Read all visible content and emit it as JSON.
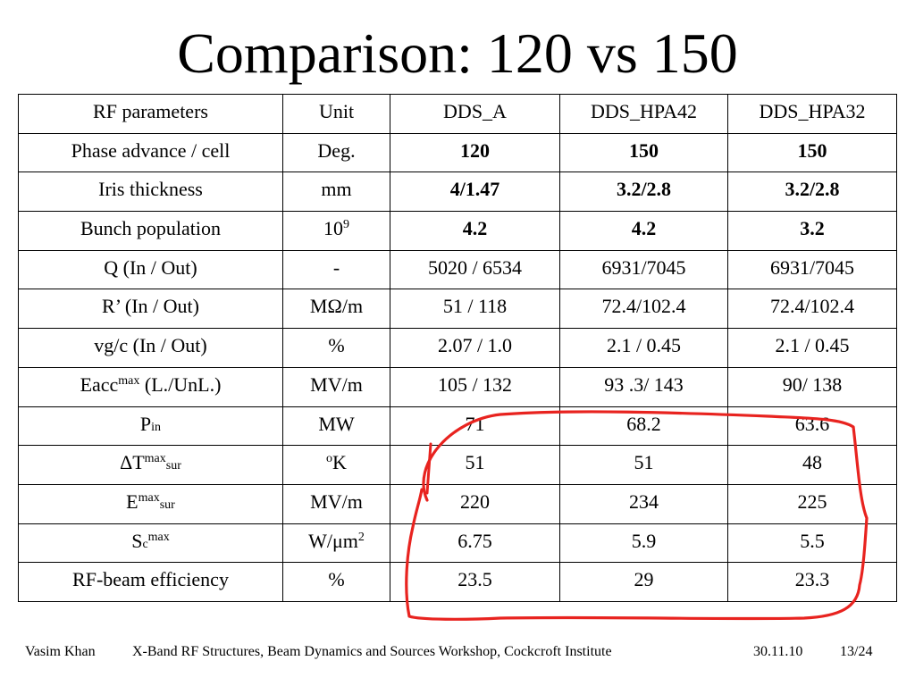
{
  "title": "Comparison: 120 vs 150",
  "table": {
    "header": [
      "RF parameters",
      "Unit",
      "DDS_A",
      "DDS_HPA42",
      "DDS_HPA32"
    ],
    "rows": [
      {
        "label": "Phase advance / cell",
        "unit": "Deg.",
        "a": "120",
        "b": "150",
        "c": "150",
        "bold": true
      },
      {
        "label": "Iris thickness",
        "unit": "mm",
        "a": "4/1.47",
        "b": "3.2/2.8",
        "c": "3.2/2.8",
        "bold": true
      },
      {
        "label": "Bunch population",
        "unit_base": "10",
        "unit_sup": "9",
        "a": "4.2",
        "b": "4.2",
        "c": "3.2",
        "bold": true
      },
      {
        "label": "Q (In / Out)",
        "unit": "-",
        "a": "5020 / 6534",
        "b": "6931/7045",
        "c": "6931/7045"
      },
      {
        "label": "R’ (In / Out)",
        "unit": "MΩ/m",
        "a": "51 / 118",
        "b": "72.4/102.4",
        "c": "72.4/102.4"
      },
      {
        "label": "vg/c (In / Out)",
        "unit": "%",
        "a": "2.07 / 1.0",
        "b": "2.1 / 0.45",
        "c": "2.1 / 0.45"
      },
      {
        "label_base": "Eacc",
        "label_sup": "max",
        "label_tail": " (L./UnL.)",
        "unit": "MV/m",
        "a": "105 / 132",
        "b": "93 .3/ 143",
        "c": "90/ 138"
      },
      {
        "label_base": "P",
        "label_sub": "in",
        "unit": "MW",
        "a": "71",
        "b": "68.2",
        "c": "63.6"
      },
      {
        "label_base": "ΔT",
        "label_sup": "max",
        "label_sub": "sur",
        "unit_sup_pre": "o",
        "unit_tail": "K",
        "a": "51",
        "b": "51",
        "c": "48"
      },
      {
        "label_base": "E",
        "label_sup": "max",
        "label_sub": "sur",
        "unit": "MV/m",
        "a": "220",
        "b": "234",
        "c": "225"
      },
      {
        "label_base": "S",
        "label_sub": "c",
        "label_sup": "max",
        "unit_base": "W/μm",
        "unit_sup": "2",
        "a": "6.75",
        "b": "5.9",
        "c": "5.5"
      },
      {
        "label": "RF-beam efficiency",
        "unit": "%",
        "a": "23.5",
        "b": "29",
        "c": "23.3"
      }
    ]
  },
  "annotation": {
    "color": "#e8231f",
    "shape": "hand-drawn loop around lower DDS columns"
  },
  "footer": {
    "author": "Vasim Khan",
    "event": "X-Band RF Structures, Beam Dynamics and Sources Workshop, Cockcroft Institute",
    "date": "30.11.10",
    "page": "13/24"
  }
}
